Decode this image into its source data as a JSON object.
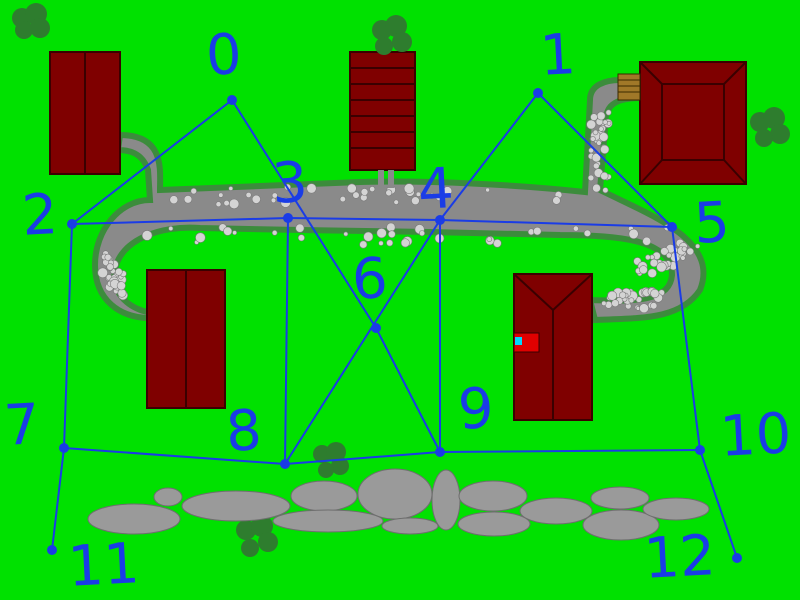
{
  "colors": {
    "grass": "#00e100",
    "path": "#8a8a8a",
    "path_edge": "#3c8c3c",
    "pebble": "#d4d4d4",
    "roof": "#7f0000",
    "roof_line": "#3a0000",
    "stone": "#9a9a9a",
    "bush": "#2e7d2e",
    "graph": "#1a3ce6"
  },
  "graph": {
    "node_labels": [
      "0",
      "1",
      "2",
      "3",
      "4",
      "5",
      "6",
      "7",
      "8",
      "9",
      "10",
      "11",
      "12"
    ]
  },
  "scene": {
    "icons": [
      "house-roof",
      "shed-roof",
      "bush",
      "stepping-stone",
      "wooden-steps",
      "red-mailbox"
    ]
  }
}
